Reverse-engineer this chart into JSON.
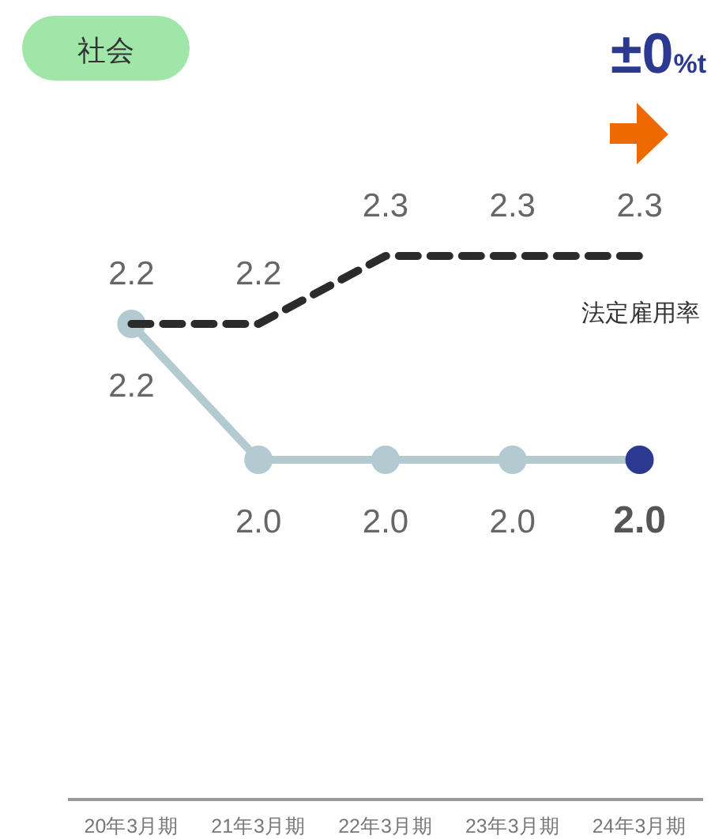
{
  "chart_data": {
    "type": "line",
    "title": "社会",
    "annotations": [
      "±0%t"
    ],
    "categories": [
      "20年3月期",
      "21年3月期",
      "22年3月期",
      "23年3月期",
      "24年3月期"
    ],
    "series": [
      {
        "name": "法定雇用率",
        "color": "#2b2b2b",
        "values": [
          2.2,
          2.2,
          2.3,
          2.3,
          2.3
        ],
        "value_labels": [
          "2.2",
          "2.2",
          "2.3",
          "2.3",
          "2.3"
        ],
        "line_style": "dashed",
        "marker": "none"
      },
      {
        "color": "#b3cad0",
        "colors": [
          "#b3cad0",
          "#b3cad0",
          "#b3cad0",
          "#b3cad0",
          "#2b3990"
        ],
        "values": [
          2.2,
          2.0,
          2.0,
          2.0,
          2.0
        ],
        "value_labels": [
          "2.2",
          "2.0",
          "2.0",
          "2.0",
          "2.0"
        ],
        "line_style": "solid",
        "marker": "circle"
      }
    ]
  }
}
